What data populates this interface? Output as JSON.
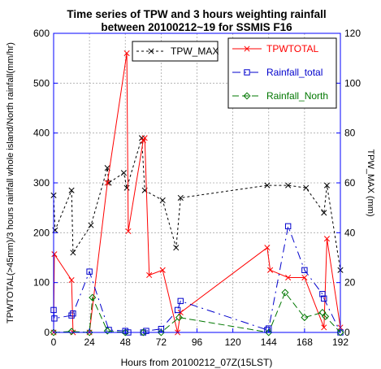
{
  "chart_data": {
    "type": "line",
    "title": [
      "Time series of TPW and 3 hours weighting rainfall",
      "between 20100212~19 for SSMIS F16"
    ],
    "xlabel": "Hours from 20100212_07Z(15LST)",
    "ylabel_left": "TPWTOTAL(>45mm)/3 hours rainfall whole island/North rainfall(mm/hr)",
    "ylabel_right": "TPW_MAX (mm)",
    "xlim": [
      0,
      192
    ],
    "xticks": [
      0,
      24,
      48,
      72,
      96,
      120,
      144,
      168,
      192
    ],
    "ylim_left": [
      0,
      600
    ],
    "yticks_left": [
      0,
      100,
      200,
      300,
      400,
      500,
      600
    ],
    "ylim_right": [
      0,
      120
    ],
    "yticks_right": [
      0,
      20,
      40,
      60,
      80,
      100,
      120
    ],
    "grid": true,
    "legend": {
      "left": "top-center",
      "right": "top-right"
    },
    "series": [
      {
        "name": "TPW_MAX",
        "axis": "right",
        "color": "#000000",
        "dash": "3,3",
        "marker": "x",
        "x": [
          0,
          1,
          12,
          13,
          25,
          36,
          37,
          47,
          49,
          59,
          61,
          73,
          82,
          85,
          143,
          157,
          169,
          181,
          183,
          192
        ],
        "y": [
          55,
          41,
          57,
          32,
          43,
          66,
          60,
          64,
          58,
          78,
          57,
          53,
          34,
          54,
          59,
          59,
          58,
          48,
          59,
          25
        ]
      },
      {
        "name": "TPWTOTAL",
        "axis": "left",
        "color": "#ff0000",
        "dash": "",
        "marker": "x",
        "x": [
          0,
          0.5,
          12,
          13,
          24,
          36,
          49,
          50,
          60,
          61,
          64,
          73,
          83,
          85,
          143,
          145,
          157,
          168,
          181,
          183,
          192
        ],
        "y": [
          0,
          157,
          105,
          0,
          0,
          300,
          560,
          203,
          385,
          390,
          115,
          125,
          0,
          40,
          170,
          125,
          110,
          110,
          10,
          188,
          10
        ]
      },
      {
        "name": "Rainfall_total",
        "axis": "left",
        "color": "#0000cc",
        "dash": "10,5,2,5",
        "marker": "square",
        "x": [
          0,
          0.5,
          12,
          13,
          24,
          37,
          48,
          50,
          60,
          62,
          72,
          83,
          85,
          143,
          144,
          157,
          168,
          180,
          181,
          192
        ],
        "y": [
          45,
          28,
          34,
          38,
          122,
          5,
          3,
          0,
          0,
          3,
          7,
          45,
          63,
          5,
          8,
          213,
          125,
          77,
          68,
          0
        ]
      },
      {
        "name": "Rainfall_North",
        "axis": "left",
        "color": "#007700",
        "dash": "8,4",
        "marker": "diamond",
        "x": [
          0,
          12,
          24,
          26,
          36,
          48,
          60,
          72,
          84,
          144,
          155,
          168,
          180,
          182,
          192
        ],
        "y": [
          0,
          2,
          0,
          70,
          3,
          0,
          0,
          0,
          30,
          0,
          80,
          30,
          40,
          32,
          0
        ]
      }
    ]
  }
}
